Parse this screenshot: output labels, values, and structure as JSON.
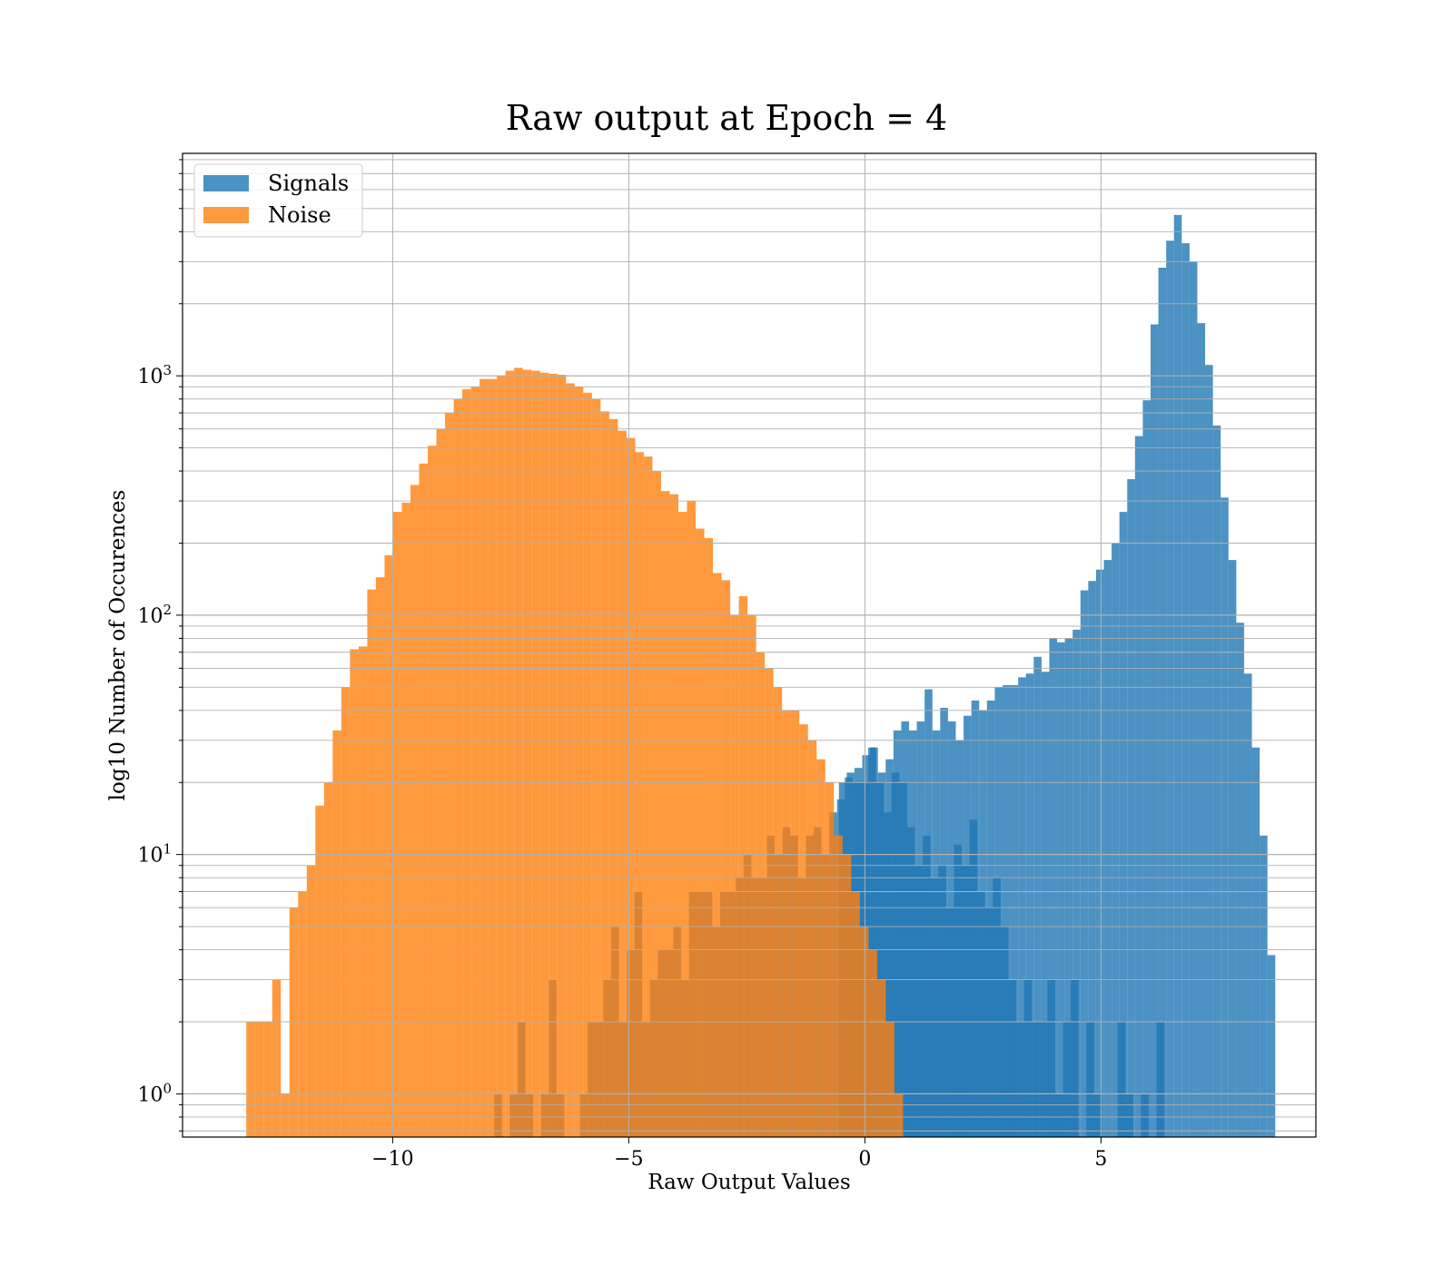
{
  "chart_data": {
    "type": "histogram",
    "title": "Raw output at Epoch = 4",
    "xlabel": "Raw Output Values",
    "ylabel": "log10 Number of Occurences",
    "xlim": [
      -14.45,
      9.55
    ],
    "ylim": [
      0.66,
      8500
    ],
    "yscale": "log",
    "x_ticks": [
      -10,
      -5,
      0,
      5
    ],
    "x_tick_labels": [
      "−10",
      "−5",
      "0",
      "5"
    ],
    "y_ticks": [
      1,
      10,
      100,
      1000
    ],
    "y_tick_base": "10",
    "y_tick_exponents": [
      "0",
      "1",
      "2",
      "3"
    ],
    "grid": true,
    "legend_position": "upper-left",
    "series": [
      {
        "name": "Signals",
        "color": "#1f77b4",
        "alpha": 0.8,
        "start": -7.85,
        "bin_width": 0.165,
        "counts": [
          1,
          0,
          1,
          2,
          1,
          0,
          1,
          3,
          1,
          0,
          0,
          1,
          2,
          2,
          3,
          5,
          2,
          4,
          7,
          2,
          3,
          4,
          4,
          5,
          3,
          7,
          7,
          7,
          5,
          7,
          7,
          8,
          10,
          8,
          8,
          12,
          10,
          13,
          12,
          8,
          12,
          13,
          10,
          15,
          17,
          21,
          20,
          20,
          28,
          20,
          15,
          22,
          20,
          13,
          9,
          12,
          8,
          9,
          6,
          11,
          9,
          14,
          7,
          6,
          8,
          5,
          3,
          2,
          3,
          2,
          2,
          3,
          1,
          2,
          3,
          0,
          2,
          1,
          0,
          0,
          2,
          1,
          0,
          1,
          0,
          2,
          0,
          0,
          0,
          0,
          0,
          0,
          0,
          0,
          0,
          0,
          0
        ],
        "sub_counts": [],
        "counts_fg": [],
        "counts_note": "",
        "tail_start": -0.55,
        "tail": [
          20,
          22,
          23,
          26,
          28,
          22,
          25,
          33,
          36,
          33,
          36,
          49,
          33,
          41,
          36,
          30,
          38,
          44,
          40,
          44,
          50,
          51,
          51,
          55,
          57,
          67,
          58,
          80,
          77,
          80,
          87,
          127,
          139,
          155,
          170,
          200,
          270,
          370,
          560,
          790,
          1640,
          2830,
          3670,
          4700,
          3580,
          3000,
          1660,
          1110,
          620,
          310,
          170,
          93,
          57,
          28,
          12,
          3.8
        ]
      },
      {
        "name": "Noise",
        "color": "#ff7f0e",
        "alpha": 0.8,
        "start": -13.1,
        "bin_width": 0.183,
        "counts": [
          2,
          2,
          2,
          3,
          1,
          6,
          7,
          9,
          16,
          20,
          33,
          50,
          72,
          74,
          128,
          144,
          178,
          270,
          295,
          350,
          430,
          510,
          600,
          700,
          800,
          880,
          900,
          970,
          970,
          1000,
          1050,
          1080,
          1060,
          1050,
          1030,
          1020,
          1010,
          930,
          900,
          850,
          800,
          710,
          660,
          590,
          550,
          480,
          460,
          400,
          330,
          320,
          270,
          300,
          230,
          210,
          150,
          140,
          100,
          120,
          100,
          70,
          60,
          50,
          40,
          40,
          35,
          30,
          25,
          20,
          12,
          10,
          7,
          5,
          4,
          3,
          2,
          1,
          0,
          0,
          0,
          0,
          0,
          0,
          0,
          0,
          0,
          0,
          0,
          0,
          0,
          0,
          0,
          0,
          0,
          0,
          0,
          0,
          0,
          0
        ],
        "sub_counts": [],
        "counts_fg": [],
        "counts_note": "",
        "tail_start": null,
        "tail": []
      }
    ]
  }
}
